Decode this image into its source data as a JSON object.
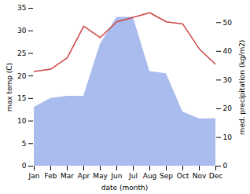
{
  "chart_data": {
    "type": "line",
    "categories": [
      "Jan",
      "Feb",
      "Mar",
      "Apr",
      "May",
      "Jun",
      "Jul",
      "Aug",
      "Sep",
      "Oct",
      "Nov",
      "Dec"
    ],
    "xlabel": "date (month)",
    "ylabel": "max temp (C)",
    "y2label": "med. precipitation (kg/m2)",
    "ylim": [
      0,
      35
    ],
    "yticks": [
      0,
      5,
      10,
      15,
      20,
      25,
      30,
      35
    ],
    "y2lim": [
      0,
      55
    ],
    "y2ticks": [
      0,
      10,
      20,
      30,
      40,
      50
    ],
    "grid": false,
    "series": [
      {
        "type": "area",
        "axis": "y2",
        "color": "#aabbee",
        "values": [
          20.428571428571427,
          23.571428571428573,
          24.357142857142858,
          24.357142857142858,
          42.42857142857143,
          51.857142857142854,
          51.857142857142854,
          33,
          32.214285714285715,
          18.857142857142858,
          16.5,
          16.5
        ]
      },
      {
        "type": "line",
        "color": "#cc4444",
        "values": [
          21,
          21.5,
          24,
          31,
          28.5,
          32,
          33,
          34,
          32,
          31.5,
          26,
          22.5
        ]
      }
    ]
  }
}
